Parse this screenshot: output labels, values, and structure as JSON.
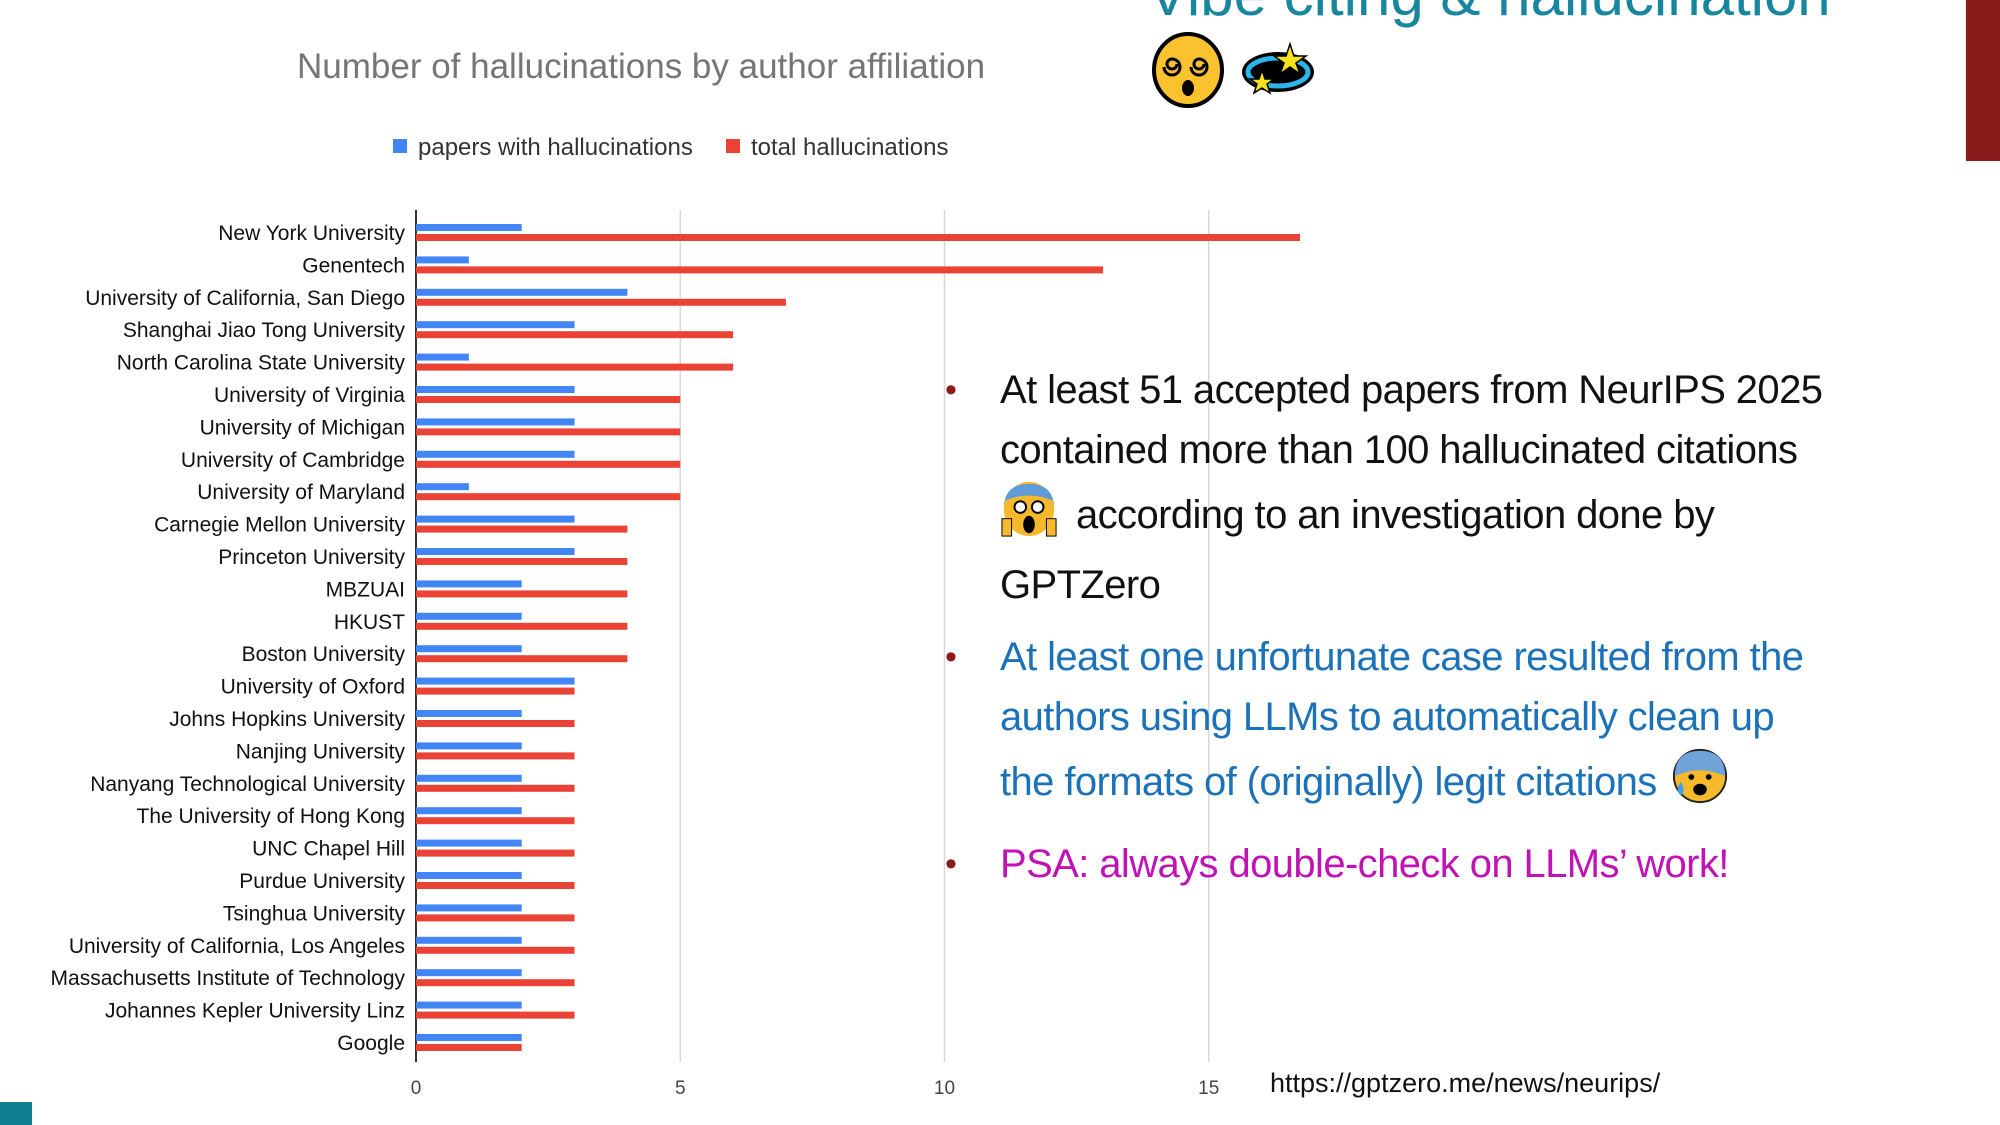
{
  "slide": {
    "title": "Vibe citing & hallucination",
    "title_emojis": [
      "dizzy-face-icon",
      "dizzy-stars-icon"
    ],
    "accent_color": "#17869e",
    "url": "https://gptzero.me/news/neurips/",
    "bullets": [
      {
        "lines": [
          "At least 51 accepted papers from NeurIPS 2025",
          "contained more than 100 hallucinated citations",
          "according to an investigation done by",
          "GPTZero"
        ],
        "emoji": "screaming-face-icon",
        "color": "#111111"
      },
      {
        "lines": [
          "At least one unfortunate case resulted from the",
          "authors using LLMs to automatically clean up",
          "the formats of (originally) legit citations"
        ],
        "emoji": "anxious-sweat-face-icon",
        "color": "#1b72b8"
      },
      {
        "lines": [
          "PSA: always double-check on LLMs’ work!"
        ],
        "color": "#c012b5"
      }
    ]
  },
  "chart_data": {
    "type": "bar",
    "orientation": "horizontal",
    "title": "Number of hallucinations by author affiliation",
    "legend_position": "top",
    "grid": true,
    "xlim": [
      0,
      17
    ],
    "xticks": [
      "0",
      "5",
      "10",
      "15"
    ],
    "categories": [
      "New York University",
      "Genentech",
      "University of California, San Diego",
      "Shanghai Jiao Tong University",
      "North Carolina State University",
      "University of Virginia",
      "University of Michigan",
      "University of Cambridge",
      "University of Maryland",
      "Carnegie Mellon University",
      "Princeton University",
      "MBZUAI",
      "HKUST",
      "Boston University",
      "University of Oxford",
      "Johns Hopkins University",
      "Nanjing University",
      "Nanyang Technological University",
      "The University of Hong Kong",
      "UNC Chapel Hill",
      "Purdue University",
      "Tsinghua University",
      "University of California, Los Angeles",
      "Massachusetts Institute of Technology",
      "Johannes Kepler University Linz",
      "Google"
    ],
    "series": [
      {
        "name": "papers with hallucinations",
        "color": "#4285f4",
        "values": [
          2,
          1,
          4,
          3,
          1,
          3,
          3,
          3,
          1,
          3,
          3,
          2,
          2,
          2,
          3,
          2,
          2,
          2,
          2,
          2,
          2,
          2,
          2,
          2,
          2,
          2
        ]
      },
      {
        "name": "total hallucinations",
        "color": "#ea4335",
        "values": [
          17,
          13,
          7,
          6,
          6,
          5,
          5,
          5,
          5,
          4,
          4,
          4,
          4,
          4,
          3,
          3,
          3,
          3,
          3,
          3,
          3,
          3,
          3,
          3,
          3,
          2
        ]
      }
    ]
  }
}
